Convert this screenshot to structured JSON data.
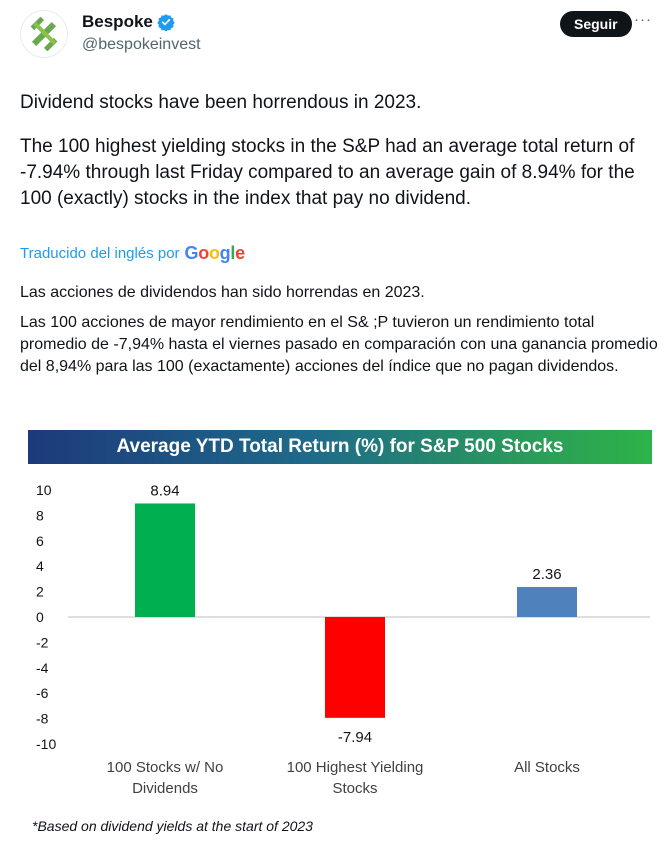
{
  "user": {
    "name": "Bespoke",
    "handle": "@bespokeinvest",
    "follow_label": "Seguir",
    "more_label": "···"
  },
  "tweet": {
    "paragraph_1": "Dividend stocks have been horrendous in 2023.",
    "paragraph_2": "The 100 highest yielding stocks in the S&P had an average total return of -7.94% through last Friday compared to an average gain of 8.94% for the 100 (exactly) stocks in the index that pay no dividend."
  },
  "translation": {
    "label": "Traducido del inglés por",
    "provider": "Google",
    "paragraph_1": "Las acciones de dividendos han sido horrendas en 2023.",
    "paragraph_2": "Las 100 acciones de mayor rendimiento en el S& ;P tuvieron un rendimiento total promedio de -7,94% hasta el viernes pasado en comparación con una ganancia promedio del 8,94% para las 100 (exactamente) acciones del índice que no pagan dividendos."
  },
  "colors": {
    "verified": "#1d9bf0",
    "link": "#1d9bf0",
    "bar_no_dividend": "#00b050",
    "bar_highest_yield": "#ff0000",
    "bar_all": "#4f81bd"
  },
  "chart_data": {
    "type": "bar",
    "title": "Average YTD Total Return (%) for S&P 500 Stocks",
    "categories": [
      [
        "100 Stocks w/ No",
        "Dividends"
      ],
      [
        "100 Highest Yielding",
        "Stocks"
      ],
      [
        "All Stocks"
      ]
    ],
    "values": [
      8.94,
      -7.94,
      2.36
    ],
    "value_labels": [
      "8.94",
      "-7.94",
      "2.36"
    ],
    "ylim": [
      -10,
      10
    ],
    "yticks": [
      10,
      8,
      6,
      4,
      2,
      0,
      -2,
      -4,
      -6,
      -8,
      -10
    ],
    "grid": false,
    "footnote": "*Based on dividend yields at the start of 2023"
  }
}
